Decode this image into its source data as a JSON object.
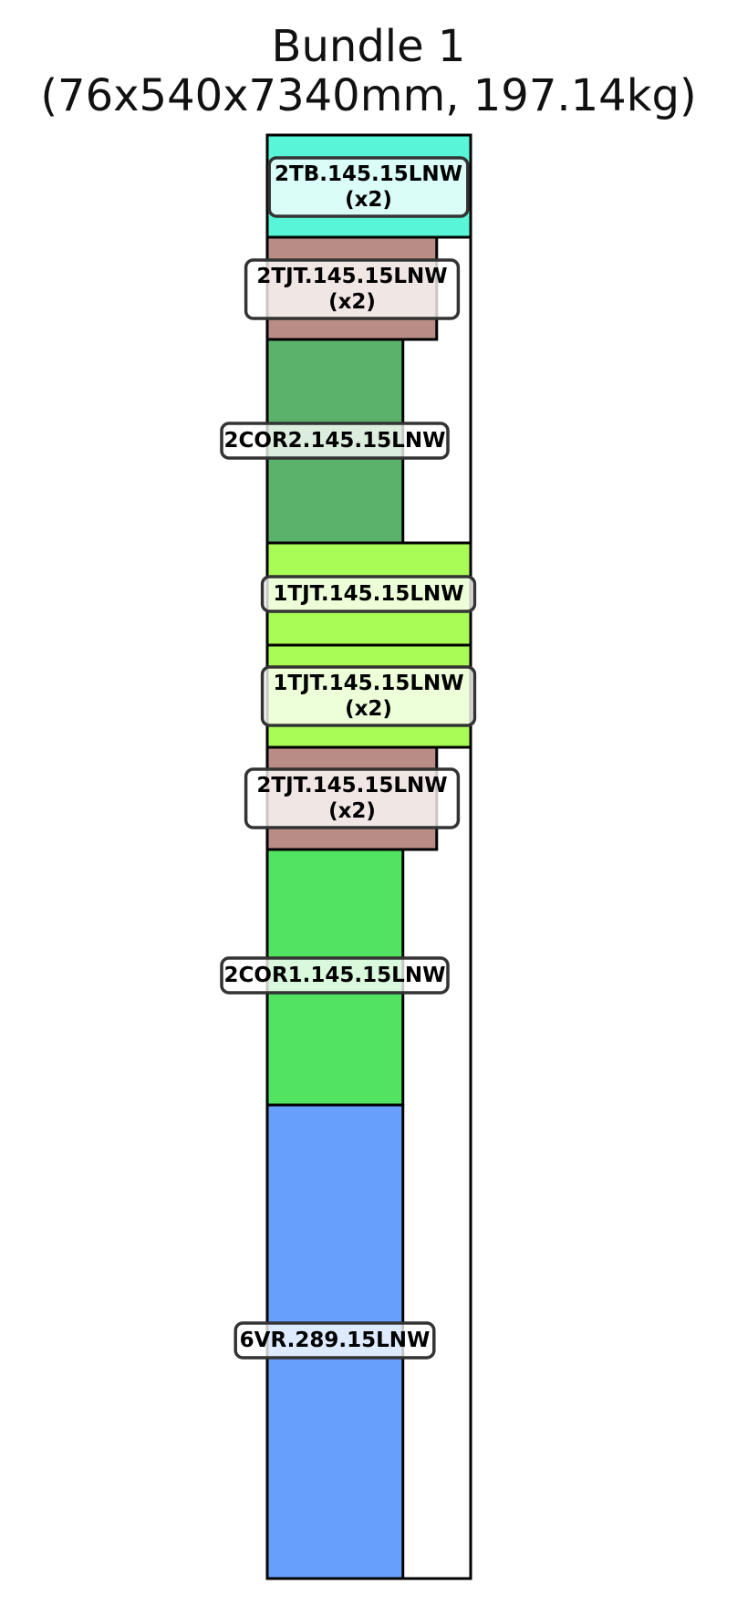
{
  "title": {
    "line1": "Bundle 1",
    "line2": "(76x540x7340mm, 197.14kg)"
  },
  "pieces": [
    {
      "name": "2TB.145.15LNW",
      "qty_label": "(x2)",
      "color": "#58f5d8",
      "relative_width": 1.0
    },
    {
      "name": "2TJT.145.15LNW",
      "qty_label": "(x2)",
      "color": "#b98d85",
      "relative_width": 0.833
    },
    {
      "name": "2COR2.145.15LNW",
      "qty_label": "",
      "color": "#5bb36b",
      "relative_width": 0.667
    },
    {
      "name": "1TJT.145.15LNW",
      "qty_label": "",
      "color": "#a8fc55",
      "relative_width": 1.0
    },
    {
      "name": "1TJT.145.15LNW",
      "qty_label": "(x2)",
      "color": "#a8fc55",
      "relative_width": 1.0
    },
    {
      "name": "2TJT.145.15LNW",
      "qty_label": "(x2)",
      "color": "#b98d85",
      "relative_width": 0.833
    },
    {
      "name": "2COR1.145.15LNW",
      "qty_label": "",
      "color": "#52e363",
      "relative_width": 0.667
    },
    {
      "name": "6VR.289.15LNW",
      "qty_label": "",
      "color": "#679ffc",
      "relative_width": 0.667
    }
  ]
}
